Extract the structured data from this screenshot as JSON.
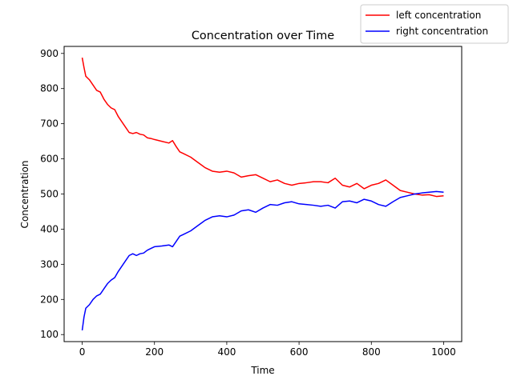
{
  "chart_data": {
    "type": "line",
    "title": "Concentration over Time",
    "xlabel": "Time",
    "ylabel": "Concentration",
    "xlim": [
      -50,
      1050
    ],
    "ylim": [
      80,
      920
    ],
    "xticks": [
      0,
      200,
      400,
      600,
      800,
      1000
    ],
    "yticks": [
      100,
      200,
      300,
      400,
      500,
      600,
      700,
      800,
      900
    ],
    "grid": false,
    "legend_position": "top-right",
    "series": [
      {
        "name": "left concentration",
        "color": "#ff0000",
        "x": [
          0,
          5,
          10,
          20,
          30,
          40,
          50,
          60,
          70,
          80,
          90,
          100,
          110,
          120,
          130,
          140,
          150,
          160,
          170,
          180,
          190,
          200,
          220,
          240,
          250,
          260,
          270,
          280,
          300,
          320,
          340,
          360,
          380,
          400,
          420,
          440,
          460,
          480,
          500,
          520,
          540,
          560,
          580,
          600,
          620,
          640,
          660,
          680,
          700,
          720,
          740,
          760,
          780,
          800,
          820,
          840,
          860,
          880,
          900,
          920,
          940,
          960,
          980,
          1000
        ],
        "y": [
          888,
          860,
          835,
          825,
          810,
          795,
          790,
          770,
          755,
          745,
          740,
          720,
          705,
          690,
          675,
          672,
          675,
          670,
          668,
          660,
          658,
          655,
          650,
          645,
          652,
          635,
          620,
          615,
          605,
          590,
          575,
          565,
          562,
          565,
          560,
          548,
          552,
          555,
          545,
          535,
          540,
          530,
          525,
          530,
          532,
          535,
          535,
          532,
          545,
          525,
          520,
          530,
          515,
          525,
          530,
          540,
          525,
          510,
          505,
          500,
          497,
          498,
          493,
          495
        ]
      },
      {
        "name": "right concentration",
        "color": "#0000ff",
        "x": [
          0,
          5,
          10,
          20,
          30,
          40,
          50,
          60,
          70,
          80,
          90,
          100,
          110,
          120,
          130,
          140,
          150,
          160,
          170,
          180,
          190,
          200,
          220,
          240,
          250,
          260,
          270,
          280,
          300,
          320,
          340,
          360,
          380,
          400,
          420,
          440,
          460,
          480,
          500,
          520,
          540,
          560,
          580,
          600,
          620,
          640,
          660,
          680,
          700,
          720,
          740,
          760,
          780,
          800,
          820,
          840,
          860,
          880,
          900,
          920,
          940,
          960,
          980,
          1000
        ],
        "y": [
          112,
          150,
          175,
          185,
          200,
          210,
          215,
          230,
          245,
          255,
          262,
          280,
          295,
          310,
          325,
          330,
          325,
          330,
          332,
          340,
          345,
          350,
          352,
          355,
          350,
          365,
          380,
          385,
          395,
          410,
          425,
          435,
          438,
          435,
          440,
          452,
          455,
          448,
          460,
          470,
          468,
          475,
          478,
          472,
          470,
          468,
          465,
          468,
          460,
          478,
          480,
          475,
          485,
          480,
          470,
          465,
          478,
          490,
          495,
          500,
          503,
          505,
          507,
          505
        ]
      }
    ]
  }
}
